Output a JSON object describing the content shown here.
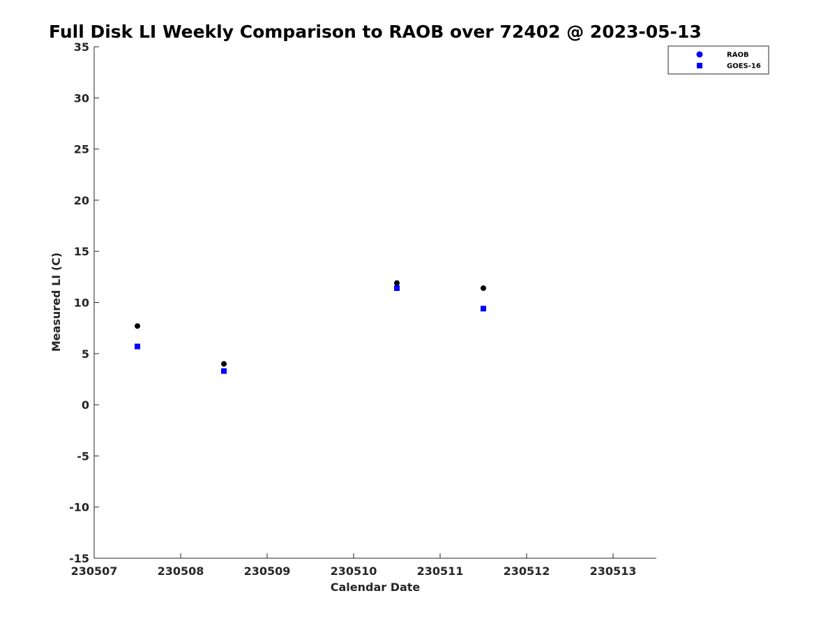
{
  "chart_data": {
    "type": "scatter",
    "title": "Full Disk LI Weekly Comparison to RAOB over 72402 @ 2023-05-13",
    "xlabel": "Calendar Date",
    "ylabel": "Measured LI (C)",
    "xlim": [
      230507,
      230513.5
    ],
    "ylim": [
      -15,
      35
    ],
    "xticks": [
      230507,
      230508,
      230509,
      230510,
      230511,
      230512,
      230513
    ],
    "xtick_labels": [
      "230507",
      "230508",
      "230509",
      "230510",
      "230511",
      "230512",
      "230513"
    ],
    "yticks": [
      -15,
      -10,
      -5,
      0,
      5,
      10,
      15,
      20,
      25,
      30,
      35
    ],
    "ytick_labels": [
      "-15",
      "-10",
      "-5",
      "0",
      "5",
      "10",
      "15",
      "20",
      "25",
      "30",
      "35"
    ],
    "grid": false,
    "legend_position": "top-right",
    "series": [
      {
        "name": "RAOB",
        "marker": "circle",
        "color": "#000000",
        "legend_color": "#0000ff",
        "x": [
          230507.5,
          230508.5,
          230510.5,
          230511.5
        ],
        "y": [
          7.7,
          4.0,
          11.9,
          11.4
        ]
      },
      {
        "name": "GOES-16",
        "marker": "square",
        "color": "#0000ff",
        "x": [
          230507.5,
          230508.5,
          230510.5,
          230511.5
        ],
        "y": [
          5.7,
          3.3,
          11.4,
          9.4
        ]
      }
    ]
  }
}
